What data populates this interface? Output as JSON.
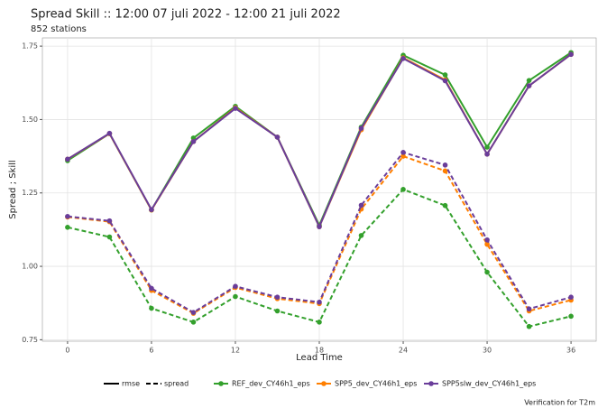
{
  "chart_data": {
    "type": "line",
    "title": "Spread Skill :: 12:00 07 juli 2022 - 12:00 21 juli 2022",
    "subtitle": "852 stations",
    "x_label": "Lead Time",
    "y_label": "Spread ; Skill",
    "caption": "Verification for T2m",
    "x": [
      0,
      3,
      6,
      9,
      12,
      15,
      18,
      21,
      24,
      27,
      30,
      33,
      36
    ],
    "metrics": [
      "rmse",
      "spread"
    ],
    "series": [
      {
        "name": "REF_dev_CY46h1_eps",
        "color": "#33a02c",
        "rmse": [
          1.36,
          1.452,
          1.192,
          1.437,
          1.545,
          1.44,
          1.14,
          1.474,
          1.719,
          1.652,
          1.406,
          1.633,
          1.728
        ],
        "spread": [
          1.133,
          1.1,
          0.857,
          0.81,
          0.897,
          0.848,
          0.81,
          1.105,
          1.262,
          1.207,
          0.98,
          0.795,
          0.83
        ]
      },
      {
        "name": "SPP5_dev_CY46h1_eps",
        "color": "#ff7f00",
        "rmse": [
          1.365,
          1.452,
          1.192,
          1.425,
          1.54,
          1.44,
          1.135,
          1.465,
          1.71,
          1.635,
          1.382,
          1.615,
          1.722
        ],
        "spread": [
          1.168,
          1.152,
          0.918,
          0.84,
          0.928,
          0.89,
          0.873,
          1.195,
          1.375,
          1.325,
          1.075,
          0.848,
          0.885
        ]
      },
      {
        "name": "SPP5slw_dev_CY46h1_eps",
        "color": "#6a3d9a",
        "rmse": [
          1.365,
          1.453,
          1.193,
          1.425,
          1.538,
          1.44,
          1.135,
          1.47,
          1.708,
          1.632,
          1.382,
          1.615,
          1.722
        ],
        "spread": [
          1.17,
          1.155,
          0.925,
          0.843,
          0.932,
          0.895,
          0.878,
          1.208,
          1.388,
          1.345,
          1.09,
          0.855,
          0.895
        ]
      }
    ],
    "xlim": [
      -1.8,
      37.8
    ],
    "ylim": [
      0.745,
      1.778
    ],
    "xticks": [
      0,
      6,
      12,
      18,
      24,
      30,
      36
    ],
    "yticks": [
      {
        "value": 0.75,
        "label": "0.75"
      },
      {
        "value": 1.0,
        "label": "1.00"
      },
      {
        "value": 1.25,
        "label": "1.25"
      },
      {
        "value": 1.5,
        "label": "1.50"
      },
      {
        "value": 1.75,
        "label": "1.75"
      }
    ],
    "grid": true
  }
}
